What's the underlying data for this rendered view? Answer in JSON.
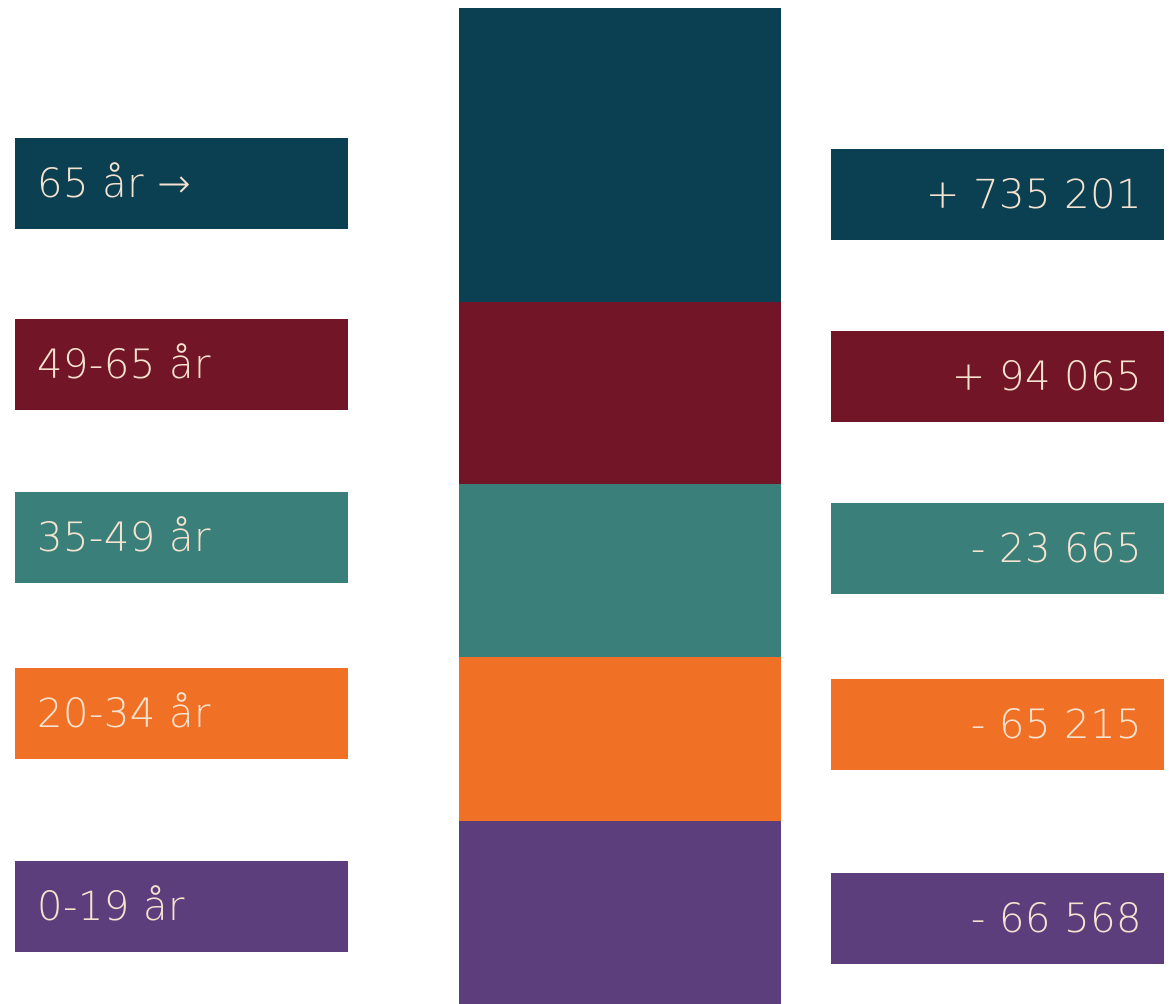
{
  "chart_data": {
    "type": "bar",
    "stacked": true,
    "categories": [
      "65 år →",
      "49-65 år",
      "35-49 år",
      "20-34 år",
      "0-19 år"
    ],
    "value_labels": [
      "+ 735 201",
      "+ 94 065",
      "- 23 665",
      "- 65 215",
      "- 66 568"
    ],
    "values": [
      735201,
      94065,
      -23665,
      -65215,
      -66568
    ],
    "segment_shares": [
      0.295,
      0.183,
      0.174,
      0.165,
      0.183
    ],
    "colors": [
      "#0b4052",
      "#721627",
      "#3a7f7a",
      "#f07025",
      "#5c3e7c"
    ],
    "text_color": "#f6e3cf",
    "title": "",
    "xlabel": "",
    "ylabel": ""
  }
}
